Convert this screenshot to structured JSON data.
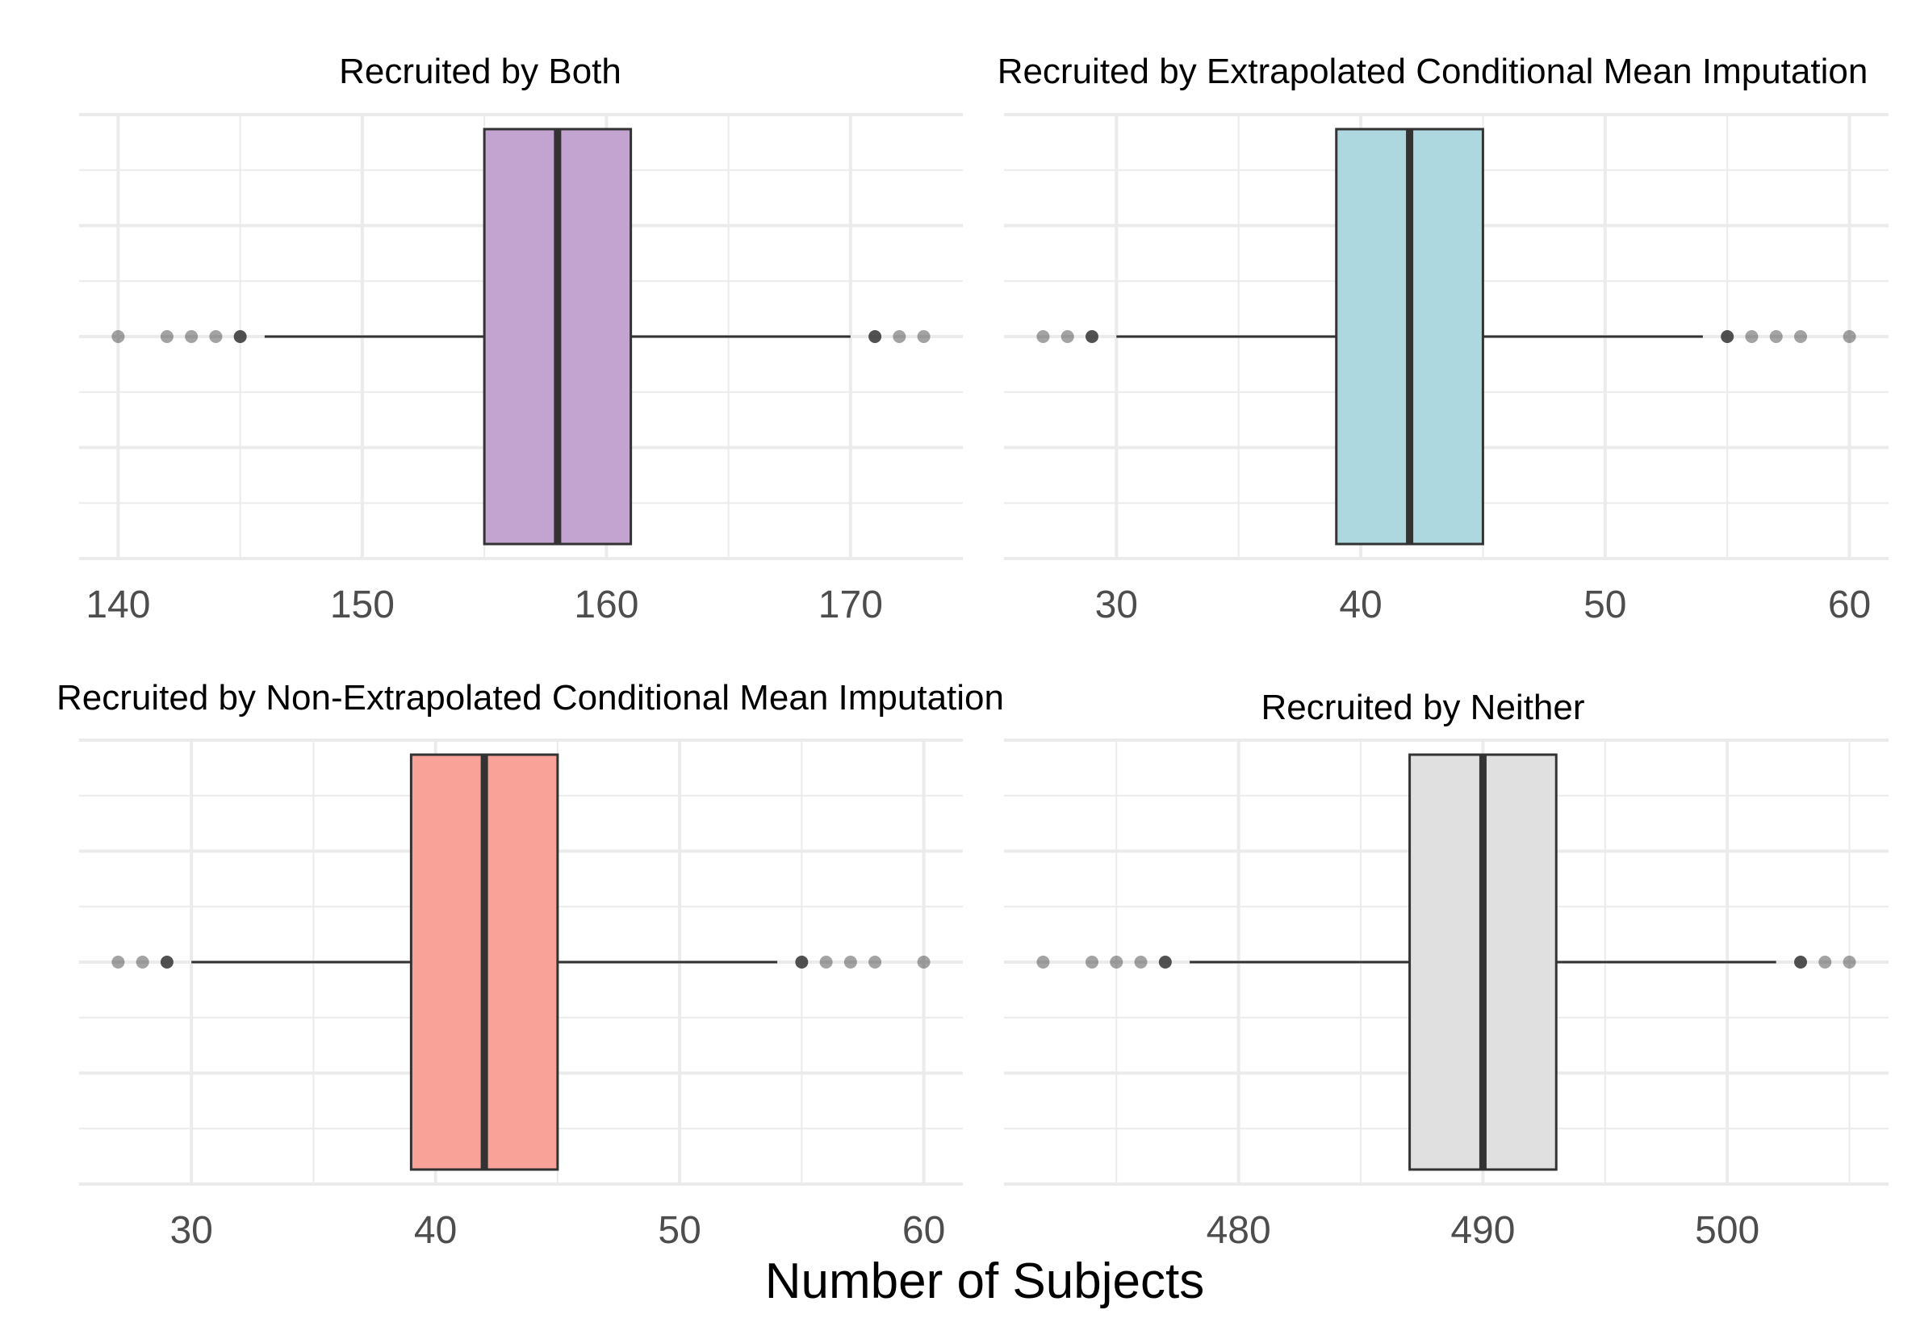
{
  "chart_data": {
    "type": "boxplot",
    "x_axis_title": "Number of Subjects",
    "grid": true,
    "legend": "none",
    "panels": [
      {
        "title": "Recruited by Both",
        "fill_color": "#c3a4d1",
        "xlim": [
          138.4,
          174.6
        ],
        "ticks": [
          140,
          150,
          160,
          170
        ],
        "tick_labels": [
          "140",
          "150",
          "160",
          "170"
        ],
        "box": {
          "whisker_low": 146,
          "q1": 155,
          "median": 158,
          "q3": 161,
          "whisker_high": 170
        },
        "outliers": [
          140,
          142,
          143,
          144,
          145,
          171,
          172,
          173
        ]
      },
      {
        "title": "Recruited by Extrapolated Conditional Mean Imputation",
        "fill_color": "#add8e0",
        "xlim": [
          25.4,
          61.6
        ],
        "ticks": [
          30,
          40,
          50,
          60
        ],
        "tick_labels": [
          "30",
          "40",
          "50",
          "60"
        ],
        "box": {
          "whisker_low": 30,
          "q1": 39,
          "median": 42,
          "q3": 45,
          "whisker_high": 54
        },
        "outliers": [
          27,
          28,
          29,
          55,
          56,
          57,
          58,
          60
        ]
      },
      {
        "title": "Recruited by Non-Extrapolated Conditional Mean Imputation",
        "fill_color": "#f9a297",
        "xlim": [
          25.4,
          61.6
        ],
        "ticks": [
          30,
          40,
          50,
          60
        ],
        "tick_labels": [
          "30",
          "40",
          "50",
          "60"
        ],
        "box": {
          "whisker_low": 30,
          "q1": 39,
          "median": 42,
          "q3": 45,
          "whisker_high": 54
        },
        "outliers": [
          27,
          28,
          29,
          55,
          56,
          57,
          58,
          60
        ]
      },
      {
        "title": "Recruited by Neither",
        "fill_color": "#e0e0e0",
        "xlim": [
          470.4,
          506.6
        ],
        "ticks": [
          480,
          490,
          500
        ],
        "tick_labels": [
          "480",
          "490",
          "500"
        ],
        "box": {
          "whisker_low": 478,
          "q1": 487,
          "median": 490,
          "q3": 493,
          "whisker_high": 502
        },
        "outliers": [
          472,
          474,
          475,
          476,
          477,
          503,
          504,
          505
        ]
      }
    ]
  },
  "colors": {
    "grid": "#ebebeb",
    "box_outline": "#333333",
    "whisker": "#333333",
    "outlier": "#333333",
    "median": "#333333"
  }
}
